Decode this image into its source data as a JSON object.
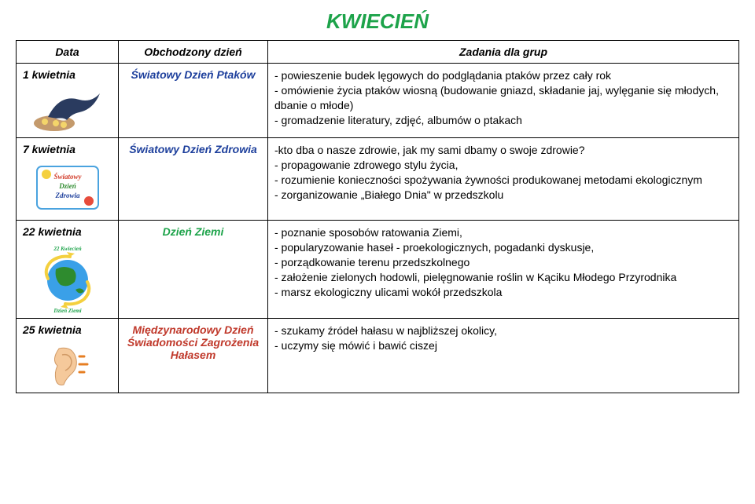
{
  "title": {
    "text": "KWIECIEŃ",
    "color": "#1da34a"
  },
  "headers": {
    "date": "Data",
    "day": "Obchodzony dzień",
    "tasks": "Zadania dla grup"
  },
  "rows": [
    {
      "date": "1 kwietnia",
      "day": "Światowy Dzień Ptaków",
      "day_color": "#1d3f9c",
      "icon": "swallow",
      "tasks": "- powieszenie budek lęgowych do podglądania ptaków przez cały rok\n- omówienie życia ptaków wiosną (budowanie gniazd, składanie jaj, wylęganie się młodych, dbanie o młode)\n- gromadzenie literatury, zdjęć, albumów o ptakach"
    },
    {
      "date": "7  kwietnia",
      "day": "Światowy Dzień Zdrowia",
      "day_color": "#1d3f9c",
      "icon": "health",
      "tasks": " -kto dba o nasze zdrowie, jak my sami dbamy o swoje zdrowie?\n- propagowanie zdrowego stylu życia,\n- rozumienie konieczności spożywania żywności produkowanej metodami ekologicznym\n- zorganizowanie „Białego Dnia\" w przedszkolu"
    },
    {
      "date": "22 kwietnia",
      "day": "Dzień Ziemi",
      "day_color": "#1da34a",
      "icon": "earth",
      "tasks": "- poznanie sposobów ratowania Ziemi,\n- popularyzowanie haseł - proekologicznych, pogadanki dyskusje,\n- porządkowanie terenu przedszkolnego\n- założenie zielonych hodowli, pielęgnowanie roślin w Kąciku Młodego Przyrodnika\n- marsz ekologiczny ulicami wokół przedszkola"
    },
    {
      "date": "25 kwietnia",
      "day": "Międzynarodowy Dzień Świadomości Zagrożenia Hałasem",
      "day_color": "#c0392b",
      "icon": "ear",
      "tasks": "- szukamy źródeł hałasu w najbliższej okolicy,\n- uczymy się mówić i bawić ciszej"
    }
  ]
}
